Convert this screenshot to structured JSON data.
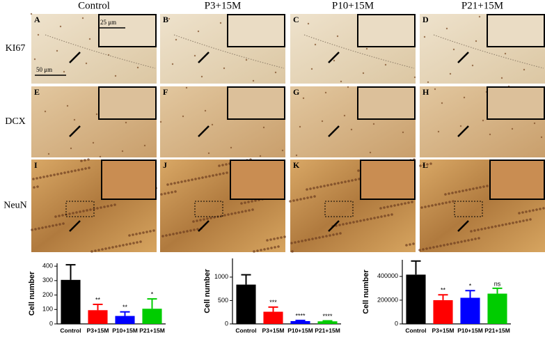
{
  "figure": {
    "columns": [
      "Control",
      "P3+15M",
      "P10+15M",
      "P21+15M"
    ],
    "rows": [
      "KI67",
      "DCX",
      "NeuN"
    ],
    "panels": [
      "A",
      "B",
      "C",
      "D",
      "E",
      "F",
      "G",
      "H",
      "I",
      "J",
      "K",
      "L"
    ],
    "scale_bars": [
      "50 μm",
      "25 μm"
    ]
  },
  "chart_data": [
    {
      "type": "bar",
      "y_label": "Cell number",
      "categories": [
        "Control",
        "P3+15M",
        "P10+15M",
        "P21+15M"
      ],
      "values": [
        305,
        95,
        55,
        105
      ],
      "errors": [
        105,
        40,
        28,
        68
      ],
      "annotations": [
        null,
        "**",
        "**",
        "*"
      ],
      "colors": [
        "#000000",
        "#ff0000",
        "#0000ff",
        "#00cc00"
      ],
      "ylim": [
        0,
        420
      ],
      "yticks": [
        0,
        100,
        200,
        300,
        400
      ]
    },
    {
      "type": "bar",
      "y_label": "Cell number",
      "categories": [
        "Control",
        "P3+15M",
        "P10+15M",
        "P21+15M"
      ],
      "values": [
        840,
        260,
        60,
        55
      ],
      "errors": [
        210,
        100,
        15,
        10
      ],
      "annotations": [
        null,
        "***",
        "****",
        "****"
      ],
      "colors": [
        "#000000",
        "#ff0000",
        "#0000ff",
        "#00cc00"
      ],
      "ylim": [
        0,
        1400
      ],
      "yticks": [
        0,
        500,
        1000
      ]
    },
    {
      "type": "bar",
      "y_label": "Cell number",
      "categories": [
        "Control",
        "P3+15M",
        "P10+15M",
        "P21+15M"
      ],
      "values": [
        415000,
        200000,
        220000,
        255000
      ],
      "errors": [
        115000,
        45000,
        60000,
        45000
      ],
      "annotations": [
        null,
        "**",
        "*",
        "ns"
      ],
      "colors": [
        "#000000",
        "#ff0000",
        "#0000ff",
        "#00cc00"
      ],
      "ylim": [
        0,
        540000
      ],
      "yticks": [
        0,
        200000,
        400000
      ]
    }
  ]
}
